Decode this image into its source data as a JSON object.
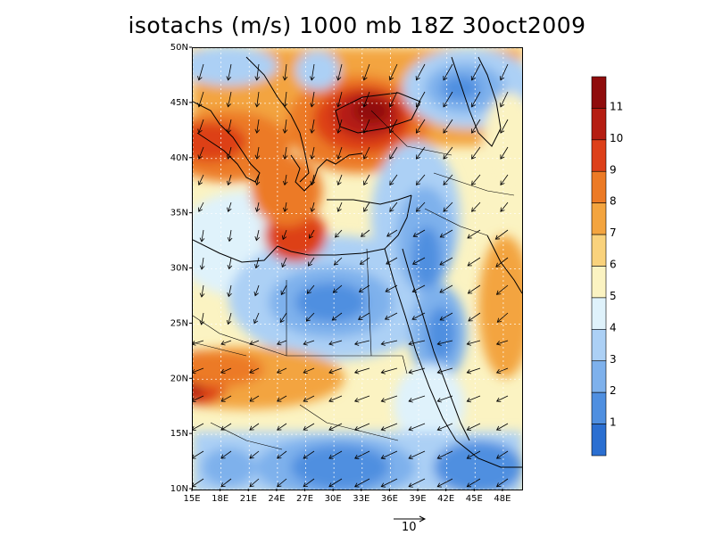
{
  "title": "isotachs (m/s) 1000 mb 18Z 30oct2009",
  "map": {
    "lon_ticks": [
      "15E",
      "18E",
      "21E",
      "24E",
      "27E",
      "30E",
      "33E",
      "36E",
      "39E",
      "42E",
      "45E",
      "48E"
    ],
    "lat_ticks": [
      "10N",
      "15N",
      "20N",
      "25N",
      "30N",
      "35N",
      "40N",
      "45N",
      "50N"
    ],
    "lon_range": [
      15,
      50
    ],
    "lat_range": [
      10,
      50
    ]
  },
  "colorbar": {
    "labels": [
      "1",
      "2",
      "3",
      "4",
      "5",
      "6",
      "7",
      "8",
      "9",
      "10",
      "11"
    ],
    "colors": [
      "#2b6fd1",
      "#4f8fe0",
      "#7eb1ec",
      "#acd0f5",
      "#dff2fb",
      "#fbf3c2",
      "#f9d27c",
      "#f3a43f",
      "#ec7a25",
      "#dd4019",
      "#b51d12",
      "#8f0c0c"
    ]
  },
  "reference_vector": {
    "label": "10"
  }
}
